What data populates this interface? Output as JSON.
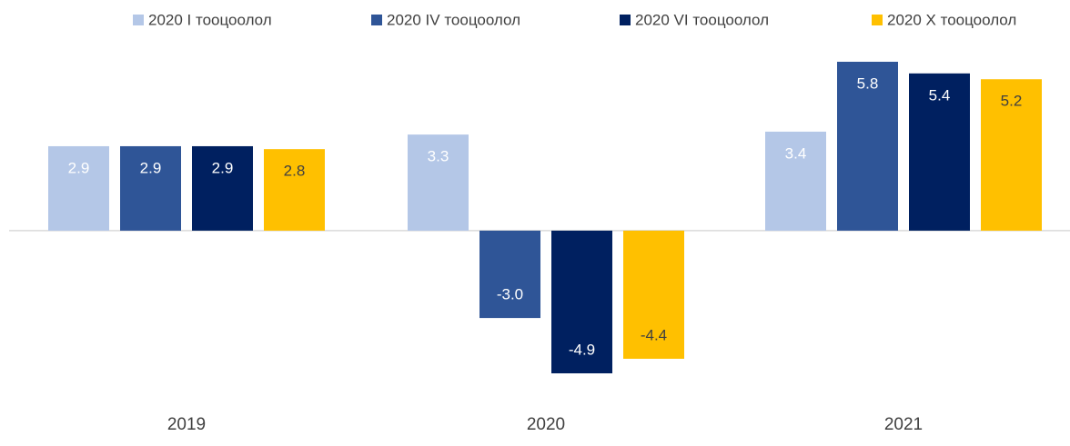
{
  "chart_data": {
    "type": "bar",
    "categories": [
      "2019",
      "2020",
      "2021"
    ],
    "series": [
      {
        "name": "2020 I тооцоолол",
        "color": "#b4c7e7",
        "values": [
          2.9,
          3.3,
          3.4
        ],
        "value_labels": [
          "2.9",
          "3.3",
          "3.4"
        ]
      },
      {
        "name": "2020 IV тооцоолол",
        "color": "#2f5597",
        "values": [
          2.9,
          -3.0,
          5.8
        ],
        "value_labels": [
          "2.9",
          "-3.0",
          "5.8"
        ]
      },
      {
        "name": "2020 VI тооцоолол",
        "color": "#002060",
        "values": [
          2.9,
          -4.9,
          5.4
        ],
        "value_labels": [
          "2.9",
          "-4.9",
          "5.4"
        ]
      },
      {
        "name": "2020 X тооцоолол",
        "color": "#ffc000",
        "values": [
          2.8,
          -4.4,
          5.2
        ],
        "value_labels": [
          "2.8",
          "-4.4",
          "5.2"
        ]
      }
    ],
    "legend": "top"
  }
}
